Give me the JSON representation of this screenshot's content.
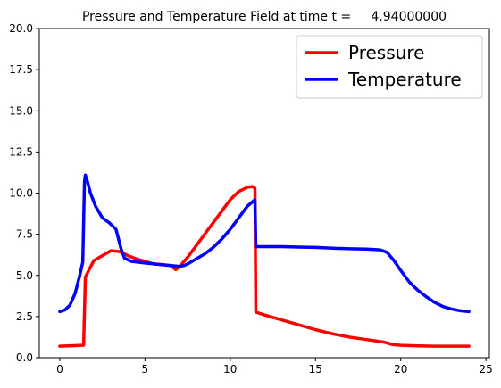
{
  "chart_data": {
    "type": "line",
    "title": "Pressure and Temperature Field at time t =     4.94000000",
    "xlabel": "",
    "ylabel": "",
    "xlim": [
      -1.2,
      25.2
    ],
    "ylim": [
      0,
      20
    ],
    "xticks": [
      0,
      5,
      10,
      15,
      20,
      25
    ],
    "yticks": [
      0.0,
      2.5,
      5.0,
      7.5,
      10.0,
      12.5,
      15.0,
      17.5,
      20.0
    ],
    "xtick_labels": [
      "0",
      "5",
      "10",
      "15",
      "20",
      "25"
    ],
    "ytick_labels": [
      "0.0",
      "2.5",
      "5.0",
      "7.5",
      "10.0",
      "12.5",
      "15.0",
      "17.5",
      "20.0"
    ],
    "grid": false,
    "legend_position": "top-right",
    "series": [
      {
        "name": "Pressure",
        "color": "#ff0000",
        "x": [
          0,
          0.5,
          1.0,
          1.4,
          1.5,
          1.55,
          1.7,
          2.0,
          2.5,
          3.0,
          3.5,
          4.0,
          4.5,
          5.0,
          5.5,
          6.0,
          6.5,
          6.8,
          7.0,
          7.5,
          8.0,
          8.5,
          9.0,
          9.5,
          10.0,
          10.5,
          11.0,
          11.3,
          11.45,
          11.5,
          11.55,
          12.0,
          13.0,
          14.0,
          15.0,
          16.0,
          17.0,
          18.0,
          19.0,
          19.5,
          20.0,
          21.0,
          22.0,
          23.0,
          24.0
        ],
        "y": [
          0.7,
          0.72,
          0.74,
          0.76,
          4.9,
          5.0,
          5.3,
          5.9,
          6.2,
          6.5,
          6.45,
          6.2,
          6.0,
          5.85,
          5.7,
          5.65,
          5.6,
          5.35,
          5.5,
          6.1,
          6.8,
          7.5,
          8.2,
          8.9,
          9.6,
          10.1,
          10.35,
          10.4,
          10.3,
          2.8,
          2.75,
          2.6,
          2.3,
          2.0,
          1.7,
          1.45,
          1.25,
          1.1,
          0.95,
          0.8,
          0.75,
          0.72,
          0.7,
          0.7,
          0.7
        ]
      },
      {
        "name": "Temperature",
        "color": "#0000ff",
        "x": [
          0,
          0.3,
          0.6,
          0.9,
          1.15,
          1.35,
          1.45,
          1.5,
          1.6,
          1.8,
          2.1,
          2.5,
          2.9,
          3.3,
          3.6,
          3.8,
          4.2,
          5.0,
          6.0,
          7.0,
          7.3,
          7.6,
          8.0,
          8.5,
          9.0,
          9.5,
          10.0,
          10.5,
          11.0,
          11.45,
          11.5,
          12.0,
          13.0,
          14.0,
          15.0,
          16.0,
          17.0,
          18.0,
          18.8,
          19.2,
          19.6,
          20.0,
          20.5,
          21.0,
          21.5,
          22.0,
          22.5,
          23.0,
          23.5,
          24.0
        ],
        "y": [
          2.8,
          2.9,
          3.2,
          3.9,
          4.9,
          5.8,
          10.7,
          11.1,
          10.8,
          10.0,
          9.2,
          8.5,
          8.2,
          7.8,
          6.6,
          6.05,
          5.85,
          5.75,
          5.65,
          5.55,
          5.6,
          5.75,
          6.0,
          6.3,
          6.7,
          7.2,
          7.8,
          8.5,
          9.2,
          9.6,
          6.75,
          6.75,
          6.75,
          6.72,
          6.7,
          6.65,
          6.62,
          6.6,
          6.55,
          6.4,
          5.9,
          5.3,
          4.6,
          4.1,
          3.7,
          3.35,
          3.1,
          2.95,
          2.85,
          2.8
        ]
      }
    ]
  }
}
